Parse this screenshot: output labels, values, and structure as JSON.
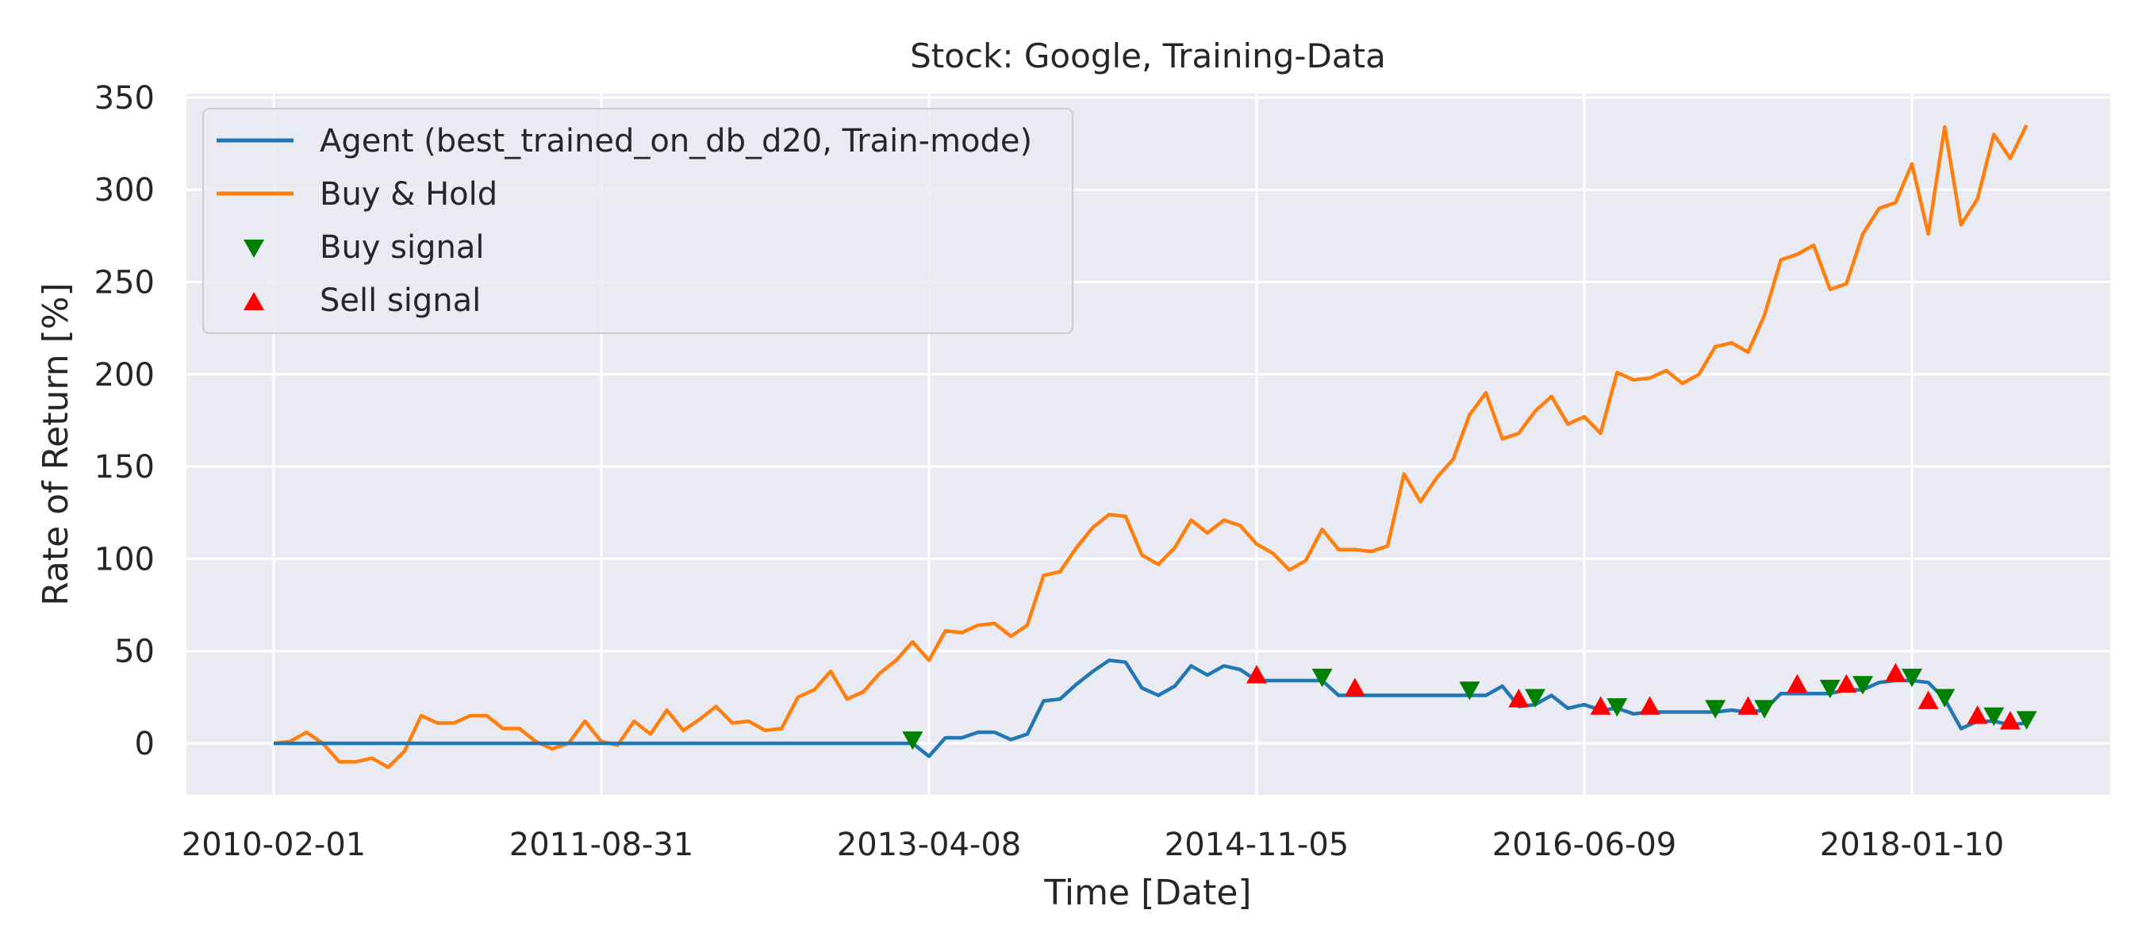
{
  "chart_data": {
    "type": "line",
    "title": "Stock: Google, Training-Data",
    "xlabel": "Time [Date]",
    "ylabel": "Rate of Return [%]",
    "ylim": [
      -30,
      355
    ],
    "yticks": [
      0,
      50,
      100,
      150,
      200,
      250,
      300,
      350
    ],
    "xticks": [
      "2010-02-01",
      "2011-08-31",
      "2013-04-08",
      "2014-11-05",
      "2016-06-09",
      "2018-01-10"
    ],
    "grid": true,
    "legend_position": "top-left",
    "legend": {
      "agent": "Agent (best_trained_on_db_d20, Train-mode)",
      "bh": "Buy & Hold",
      "buy": "Buy signal",
      "sell": "Sell signal"
    },
    "colors": {
      "agent": "#1f77b4",
      "bh": "#ff7f0e",
      "buy": "#008000",
      "sell": "#ff0000",
      "background": "#eaeaf2",
      "grid": "#ffffff"
    },
    "series": [
      {
        "name": "Buy & Hold",
        "values": [
          [
            0,
            0
          ],
          [
            1,
            1
          ],
          [
            2,
            6
          ],
          [
            3,
            0
          ],
          [
            4,
            -10
          ],
          [
            5,
            -10
          ],
          [
            6,
            -8
          ],
          [
            7,
            -13
          ],
          [
            8,
            -4
          ],
          [
            9,
            15
          ],
          [
            10,
            11
          ],
          [
            11,
            11
          ],
          [
            12,
            15
          ],
          [
            13,
            15
          ],
          [
            14,
            8
          ],
          [
            15,
            8
          ],
          [
            16,
            1
          ],
          [
            17,
            -3
          ],
          [
            18,
            0
          ],
          [
            19,
            12
          ],
          [
            20,
            1
          ],
          [
            21,
            -1
          ],
          [
            22,
            12
          ],
          [
            23,
            5
          ],
          [
            24,
            18
          ],
          [
            25,
            7
          ],
          [
            26,
            13
          ],
          [
            27,
            20
          ],
          [
            28,
            11
          ],
          [
            29,
            12
          ],
          [
            30,
            7
          ],
          [
            31,
            8
          ],
          [
            32,
            25
          ],
          [
            33,
            29
          ],
          [
            34,
            39
          ],
          [
            35,
            24
          ],
          [
            36,
            28
          ],
          [
            37,
            38
          ],
          [
            38,
            45
          ],
          [
            39,
            55
          ],
          [
            40,
            45
          ],
          [
            41,
            61
          ],
          [
            42,
            60
          ],
          [
            43,
            64
          ],
          [
            44,
            65
          ],
          [
            45,
            58
          ],
          [
            46,
            64
          ],
          [
            47,
            91
          ],
          [
            48,
            93
          ],
          [
            49,
            106
          ],
          [
            50,
            117
          ],
          [
            51,
            124
          ],
          [
            52,
            123
          ],
          [
            53,
            102
          ],
          [
            54,
            97
          ],
          [
            55,
            106
          ],
          [
            56,
            121
          ],
          [
            57,
            114
          ],
          [
            58,
            121
          ],
          [
            59,
            118
          ],
          [
            60,
            108
          ],
          [
            61,
            103
          ],
          [
            62,
            94
          ],
          [
            63,
            99
          ],
          [
            64,
            116
          ],
          [
            65,
            105
          ],
          [
            66,
            105
          ],
          [
            67,
            104
          ],
          [
            68,
            107
          ],
          [
            69,
            146
          ],
          [
            70,
            131
          ],
          [
            71,
            144
          ],
          [
            72,
            154
          ],
          [
            73,
            178
          ],
          [
            74,
            190
          ],
          [
            75,
            165
          ],
          [
            76,
            168
          ],
          [
            77,
            180
          ],
          [
            78,
            188
          ],
          [
            79,
            173
          ],
          [
            80,
            177
          ],
          [
            81,
            168
          ],
          [
            82,
            201
          ],
          [
            83,
            197
          ],
          [
            84,
            198
          ],
          [
            85,
            202
          ],
          [
            86,
            195
          ],
          [
            87,
            200
          ],
          [
            88,
            215
          ],
          [
            89,
            217
          ],
          [
            90,
            212
          ],
          [
            91,
            232
          ],
          [
            92,
            262
          ],
          [
            93,
            265
          ],
          [
            94,
            270
          ],
          [
            95,
            246
          ],
          [
            96,
            249
          ],
          [
            97,
            276
          ],
          [
            98,
            290
          ],
          [
            99,
            293
          ],
          [
            100,
            314
          ],
          [
            101,
            276
          ],
          [
            102,
            334
          ],
          [
            103,
            281
          ],
          [
            104,
            295
          ],
          [
            105,
            330
          ],
          [
            106,
            317
          ],
          [
            107,
            335
          ]
        ]
      },
      {
        "name": "Agent (best_trained_on_db_d20, Train-mode)",
        "values": [
          [
            0,
            0
          ],
          [
            39,
            0
          ],
          [
            40,
            -7
          ],
          [
            41,
            3
          ],
          [
            42,
            3
          ],
          [
            43,
            6
          ],
          [
            44,
            6
          ],
          [
            45,
            2
          ],
          [
            46,
            5
          ],
          [
            47,
            23
          ],
          [
            48,
            24
          ],
          [
            49,
            32
          ],
          [
            50,
            39
          ],
          [
            51,
            45
          ],
          [
            52,
            44
          ],
          [
            53,
            30
          ],
          [
            54,
            26
          ],
          [
            55,
            31
          ],
          [
            56,
            42
          ],
          [
            57,
            37
          ],
          [
            58,
            42
          ],
          [
            59,
            40
          ],
          [
            60,
            34
          ],
          [
            64,
            34
          ],
          [
            65,
            26
          ],
          [
            74,
            26
          ],
          [
            75,
            31
          ],
          [
            76,
            20
          ],
          [
            77,
            21
          ],
          [
            78,
            26
          ],
          [
            79,
            19
          ],
          [
            80,
            21
          ],
          [
            81,
            18
          ],
          [
            82,
            19
          ],
          [
            83,
            16
          ],
          [
            84,
            17
          ],
          [
            85,
            17
          ],
          [
            88,
            17
          ],
          [
            89,
            18
          ],
          [
            90,
            17
          ],
          [
            91,
            18
          ],
          [
            92,
            27
          ],
          [
            93,
            27
          ],
          [
            94,
            27
          ],
          [
            95,
            27
          ],
          [
            96,
            29
          ],
          [
            97,
            29
          ],
          [
            98,
            33
          ],
          [
            99,
            34
          ],
          [
            100,
            34
          ],
          [
            101,
            33
          ],
          [
            102,
            24
          ],
          [
            103,
            8
          ],
          [
            104,
            12
          ],
          [
            105,
            12
          ],
          [
            106,
            10
          ],
          [
            107,
            11
          ]
        ]
      }
    ],
    "buy_signals": [
      [
        39,
        2
      ],
      [
        64,
        36
      ],
      [
        73,
        29
      ],
      [
        77,
        25
      ],
      [
        82,
        20
      ],
      [
        88,
        19
      ],
      [
        91,
        19
      ],
      [
        95,
        30
      ],
      [
        97,
        32
      ],
      [
        100,
        36
      ],
      [
        102,
        25
      ],
      [
        105,
        15
      ],
      [
        107,
        13
      ]
    ],
    "sell_signals": [
      [
        60,
        37
      ],
      [
        66,
        30
      ],
      [
        76,
        24
      ],
      [
        81,
        20
      ],
      [
        84,
        20
      ],
      [
        90,
        20
      ],
      [
        93,
        32
      ],
      [
        96,
        32
      ],
      [
        99,
        38
      ],
      [
        101,
        23
      ],
      [
        104,
        15
      ],
      [
        106,
        12
      ]
    ]
  }
}
